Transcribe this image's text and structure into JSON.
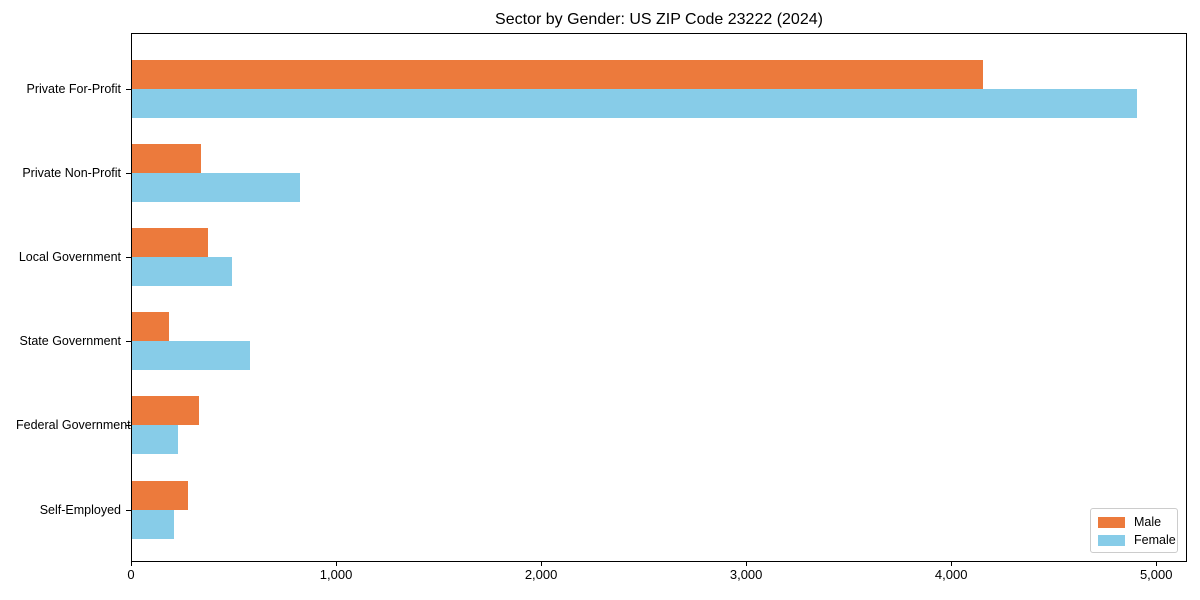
{
  "chart_data": {
    "type": "bar",
    "orientation": "horizontal",
    "title": "Sector by Gender: US ZIP Code 23222 (2024)",
    "xlabel": "",
    "ylabel": "",
    "categories": [
      "Private For-Profit",
      "Private Non-Profit",
      "Local Government",
      "State Government",
      "Federal Government",
      "Self-Employed"
    ],
    "series": [
      {
        "name": "Male",
        "color": "#ec7a3c",
        "values": [
          4150,
          335,
          370,
          180,
          325,
          275
        ]
      },
      {
        "name": "Female",
        "color": "#87cce8",
        "values": [
          4900,
          820,
          490,
          575,
          225,
          205
        ]
      }
    ],
    "xlim": [
      0,
      5150
    ],
    "xticks": [
      0,
      1000,
      2000,
      3000,
      4000,
      5000
    ],
    "xtick_labels": [
      "0",
      "1,000",
      "2,000",
      "3,000",
      "4,000",
      "5,000"
    ],
    "grid": false,
    "legend": {
      "position": "lower right",
      "entries": [
        "Male",
        "Female"
      ]
    }
  },
  "colors": {
    "male": "#ec7a3c",
    "female": "#87cce8",
    "spine": "#000000",
    "background": "#ffffff",
    "legend_border": "#cccccc",
    "text": "#000000"
  }
}
